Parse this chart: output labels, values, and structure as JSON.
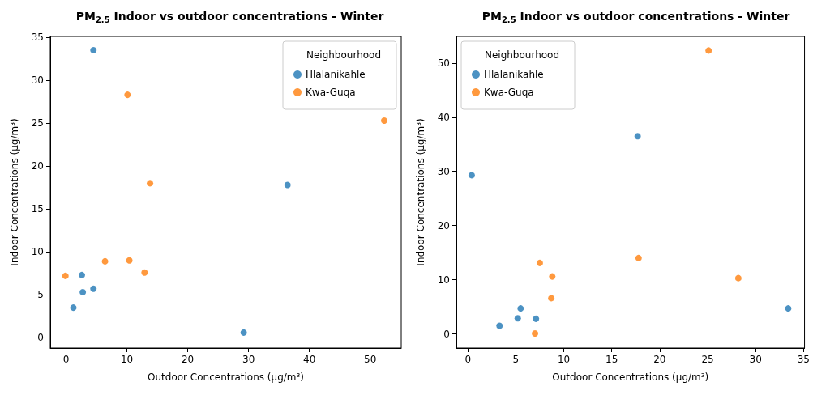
{
  "chart_data": [
    {
      "type": "scatter",
      "title": "PM$_{2.5}$ Indoor vs outdoor concentrations - Winter",
      "xlabel": "Outdoor Concentrations (µg/m³)",
      "ylabel": "Indoor Concentrations (µg/m³)",
      "legend_title": "Neighbourhood",
      "legend": "top right",
      "grid": false,
      "marker": "circle",
      "xlim": [
        -2.6,
        55.1
      ],
      "xticks": [
        0,
        10,
        20,
        30,
        40,
        50
      ],
      "ylim": [
        -1.2,
        35.1
      ],
      "yticks": [
        0,
        5,
        10,
        15,
        20,
        25,
        30,
        35
      ],
      "series": [
        {
          "name": "Hlalanikahle",
          "color": "#1f77b4",
          "x": [
            4.5,
            2.6,
            2.75,
            4.5,
            1.2,
            29.2,
            36.4
          ],
          "values": [
            33.5,
            7.3,
            5.3,
            5.7,
            3.5,
            0.6,
            17.8
          ]
        },
        {
          "name": "Kwa-Guqa",
          "color": "#ff7f0e",
          "x": [
            -0.1,
            10.1,
            6.4,
            10.4,
            12.9,
            13.8,
            52.3
          ],
          "values": [
            7.2,
            28.3,
            8.9,
            9.0,
            7.6,
            18.0,
            25.3
          ]
        }
      ]
    },
    {
      "type": "scatter",
      "title": "PM$_{2.5}$ Indoor vs outdoor concentrations - Winter",
      "xlabel": "Outdoor Concentrations (µg/m³)",
      "ylabel": "Indoor Concentrations (µg/m³)",
      "legend_title": "Neighbourhood",
      "legend": "top left",
      "grid": false,
      "marker": "circle",
      "xlim": [
        -1.2,
        35.1
      ],
      "xticks": [
        0,
        5,
        10,
        15,
        20,
        25,
        30,
        35
      ],
      "ylim": [
        -2.6,
        54.9
      ],
      "yticks": [
        0,
        10,
        20,
        30,
        40,
        50
      ],
      "series": [
        {
          "name": "Hlalanikahle",
          "color": "#1f77b4",
          "x": [
            0.4,
            17.7,
            3.3,
            5.2,
            5.5,
            7.1,
            33.4
          ],
          "values": [
            29.3,
            36.5,
            1.5,
            2.9,
            4.7,
            2.8,
            4.7
          ]
        },
        {
          "name": "Kwa-Guqa",
          "color": "#ff7f0e",
          "x": [
            25.1,
            7.5,
            8.8,
            8.7,
            7.0,
            17.8,
            28.2
          ],
          "values": [
            52.3,
            13.1,
            10.6,
            6.6,
            0.1,
            14.0,
            10.3
          ]
        }
      ]
    }
  ]
}
